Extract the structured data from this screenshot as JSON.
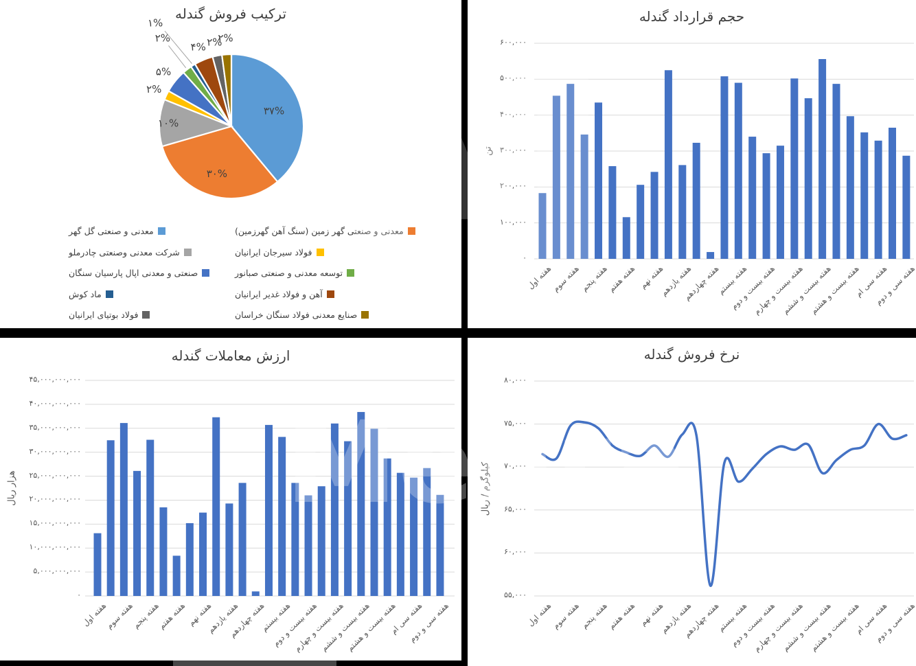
{
  "watermark": {
    "text": "Mehra",
    "monogram": "M"
  },
  "chart_data": [
    {
      "id": "pellet-sales-composition",
      "type": "pie",
      "title": "ترکیب فروش گندله",
      "legend_position": "bottom",
      "slices": [
        {
          "company": "معدنی و صنعتی گل گهر",
          "pct_label": "۳۷%",
          "value": 37,
          "color": "#5B9BD5"
        },
        {
          "company": "معدنی و صنعتی گهر زمین (سنگ آهن گهرزمین)",
          "pct_label": "۳۰%",
          "value": 30,
          "color": "#ED7D31"
        },
        {
          "company": "شرکت معدنی وصنعتی چادرملو",
          "pct_label": "۱۰%",
          "value": 10,
          "color": "#A5A5A5"
        },
        {
          "company": "فولاد سیرجان ایرانیان",
          "pct_label": "۲%",
          "value": 2,
          "color": "#FFC000"
        },
        {
          "company": "صنعتی و معدنی اپال پارسیان سنگان",
          "pct_label": "۵%",
          "value": 5,
          "color": "#4472C4"
        },
        {
          "company": "توسعه معدنی و صنعتی صبانور",
          "pct_label": "۲%",
          "value": 2,
          "color": "#70AD47"
        },
        {
          "company": "ماد کوش",
          "pct_label": "۱%",
          "value": 1,
          "color": "#255E91"
        },
        {
          "company": "آهن و فولاد غدیر ایرانیان",
          "pct_label": "۴%",
          "value": 4,
          "color": "#9E480E"
        },
        {
          "company": "فولاد بوتیای ایرانیان",
          "pct_label": "۲%",
          "value": 2,
          "color": "#636363"
        },
        {
          "company": "صنایع معدنی فولاد سنگان خراسان",
          "pct_label": "۲%",
          "value": 2,
          "color": "#997300"
        }
      ],
      "legend_columns": [
        [
          0,
          2,
          4,
          6,
          8
        ],
        [
          1,
          3,
          5,
          7,
          9
        ]
      ]
    },
    {
      "id": "pellet-contract-volume",
      "type": "bar",
      "title": "حجم قرارداد گندله",
      "ylabel": "تن",
      "ylim": [
        0,
        600000
      ],
      "grid": true,
      "bar_color": "#4472C4",
      "ytick_labels": [
        "۶۰۰,۰۰۰",
        "۵۰۰,۰۰۰",
        "۴۰۰,۰۰۰",
        "۳۰۰,۰۰۰",
        "۲۰۰,۰۰۰",
        "۱۰۰,۰۰۰",
        "۰"
      ],
      "x_tick_labels": [
        "هفته اول",
        "هفته سوم",
        "هفته پنجم",
        "هفته هفتم",
        "هفته نهم",
        "هفته یازدهم",
        "هفته چهاردهم",
        "هفته بیستم",
        "هفته بیست و دوم",
        "هفته بیست و چهارم",
        "هفته بیست و ششم",
        "هفته بیست و هشتم",
        "هفته سی ام",
        "هفته سی و دوم"
      ],
      "values": [
        183000,
        454000,
        487000,
        346000,
        435000,
        258000,
        116000,
        206000,
        242000,
        525000,
        261000,
        323000,
        19000,
        508000,
        490000,
        340000,
        294000,
        315000,
        502000,
        447000,
        556000,
        487000,
        397000,
        352000,
        329000,
        365000,
        287000
      ]
    },
    {
      "id": "pellet-trade-value",
      "type": "bar",
      "title": "ارزش معاملات گندله",
      "ylabel": "هزار ریال",
      "ylim": [
        0,
        45000000000
      ],
      "grid": true,
      "bar_color": "#4472C4",
      "ytick_labels": [
        "۴۵,۰۰۰,۰۰۰,۰۰۰",
        "۴۰,۰۰۰,۰۰۰,۰۰۰",
        "۳۵,۰۰۰,۰۰۰,۰۰۰",
        "۳۰,۰۰۰,۰۰۰,۰۰۰",
        "۲۵,۰۰۰,۰۰۰,۰۰۰",
        "۲۰,۰۰۰,۰۰۰,۰۰۰",
        "۱۵,۰۰۰,۰۰۰,۰۰۰",
        "۱۰,۰۰۰,۰۰۰,۰۰۰",
        "۵,۰۰۰,۰۰۰,۰۰۰",
        "۰"
      ],
      "x_tick_labels": [
        "هفته اول",
        "هفته سوم",
        "هفته پنجم",
        "هفته هفتم",
        "هفته نهم",
        "هفته یازدهم",
        "هفته چهاردهم",
        "هفته بیستم",
        "هفته بیست و دوم",
        "هفته بیست و چهارم",
        "هفته بیست و ششم",
        "هفته بیست و هشتم",
        "هفته سی ام",
        "هفته سی و دوم"
      ],
      "values": [
        13100000000,
        32500000000,
        36100000000,
        26100000000,
        32600000000,
        18500000000,
        8400000000,
        15200000000,
        17400000000,
        37300000000,
        19300000000,
        23600000000,
        950000000,
        35700000000,
        33200000000,
        23600000000,
        21000000000,
        22900000000,
        36000000000,
        32300000000,
        38400000000,
        34900000000,
        28700000000,
        25700000000,
        24700000000,
        26700000000,
        21100000000
      ]
    },
    {
      "id": "pellet-sales-rate",
      "type": "line",
      "title": "نرخ فروش گندله",
      "ylabel": "کیلوگرم / ریال",
      "ylim": [
        55000,
        80000
      ],
      "grid": true,
      "line_color": "#4472C4",
      "smooth": true,
      "ytick_labels": [
        "۸۰,۰۰۰",
        "۷۵,۰۰۰",
        "۷۰,۰۰۰",
        "۶۵,۰۰۰",
        "۶۰,۰۰۰",
        "۵۵,۰۰۰"
      ],
      "x_tick_labels": [
        "هفته اول",
        "هفته سوم",
        "هفته پنجم",
        "هفته هفتم",
        "هفته نهم",
        "هفته یازدهم",
        "هفته چهاردهم",
        "هفته بیستم",
        "هفته بیست و دوم",
        "هفته بیست و چهارم",
        "هفته بیست و ششم",
        "هفته بیست و هشتم",
        "هفته سی ام",
        "هفته سی و دوم"
      ],
      "values": [
        71500,
        71000,
        74800,
        75200,
        74500,
        72500,
        71700,
        71300,
        72500,
        71200,
        73800,
        73700,
        56200,
        70500,
        68300,
        69800,
        71500,
        72400,
        72000,
        72600,
        69300,
        70800,
        72000,
        72500,
        75000,
        73300,
        73700
      ]
    }
  ]
}
